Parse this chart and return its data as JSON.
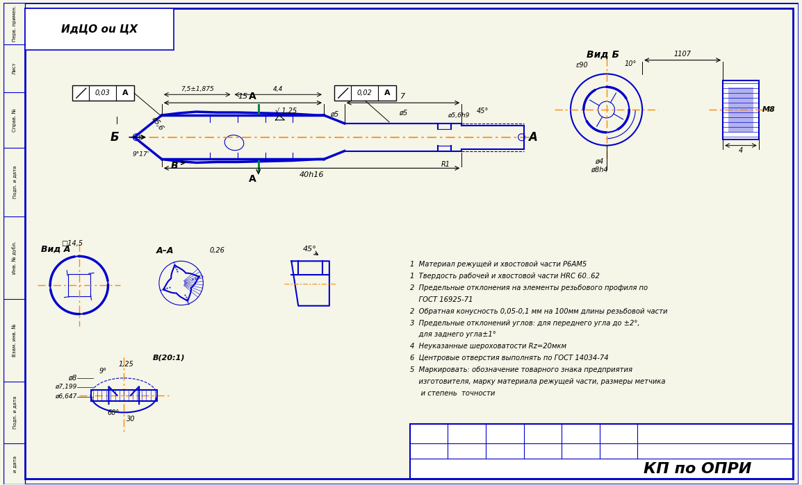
{
  "bg_color": "#ffffff",
  "paper_color": "#f5f5e8",
  "border_color": "#0000cc",
  "line_color": "#0000cc",
  "centerline_color": "#ff8800",
  "cut_line_color": "#008844",
  "black": "#000000",
  "title": "КП по ОПРИ",
  "header_text": "ИдЦО оu ЦХ",
  "notes": [
    "1  Материал режущей и хвостовой части Р6АМ5",
    "1  Твердость рабочей и хвостовой части HRC 60..62",
    "2  Предельные отклонения на элементы резьбового профиля по",
    "    ГОСТ 16925-71",
    "2  Обратная конусность 0,05-0,1 мм на 100мм длины резьбовой части",
    "3  Предельные отклонений углов: для переднего угла до ±2°,",
    "    для заднего угла±1°",
    "4  Неуказанные шероховатости Rz=20мкм",
    "6  Центровые отверстия выполнять по ГОСТ 14034-74",
    "5  Маркировать: обозначение товарного знака предприятия",
    "    изготовителя, марку материала режущей части, размеры метчика",
    "     и степень  точности"
  ]
}
